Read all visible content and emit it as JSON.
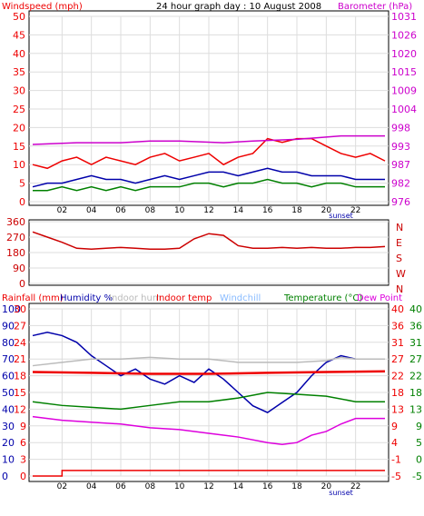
{
  "top_title": "24 hour graph day : 10 August 2008",
  "colors": {
    "red": "#ee0000",
    "green": "#008000",
    "blue": "#0000aa",
    "magenta": "#cc00cc",
    "grey": "#bbbbbb",
    "lightblue": "#88bbff",
    "dewpoint": "#dd00dd",
    "axis": "#000000"
  },
  "chart_data": [
    {
      "type": "line",
      "left_label": "Windspeed (mph)",
      "right_label": "Barometer (hPa)",
      "left_ticks": [
        "0",
        "5",
        "10",
        "15",
        "20",
        "25",
        "30",
        "35",
        "40",
        "45",
        "50"
      ],
      "right_ticks": [
        "976",
        "982",
        "987",
        "993",
        "998",
        "1004",
        "1009",
        "1015",
        "1020",
        "1026",
        "1031"
      ],
      "x_ticks": [
        "02",
        "04",
        "06",
        "08",
        "10",
        "12",
        "14",
        "16",
        "18",
        "20",
        "22"
      ],
      "x_marker": "sunset",
      "ylim": [
        0,
        50
      ],
      "y2lim": [
        976,
        1031
      ],
      "grid": true,
      "series": [
        {
          "key": "gust",
          "color": "#ee0000",
          "points": [
            [
              0,
              10
            ],
            [
              1,
              9
            ],
            [
              2,
              11
            ],
            [
              3,
              12
            ],
            [
              4,
              10
            ],
            [
              5,
              12
            ],
            [
              6,
              11
            ],
            [
              7,
              10
            ],
            [
              8,
              12
            ],
            [
              9,
              13
            ],
            [
              10,
              11
            ],
            [
              11,
              12
            ],
            [
              12,
              13
            ],
            [
              13,
              10
            ],
            [
              14,
              12
            ],
            [
              15,
              13
            ],
            [
              16,
              17
            ],
            [
              17,
              16
            ],
            [
              18,
              17
            ],
            [
              19,
              17
            ],
            [
              20,
              15
            ],
            [
              21,
              13
            ],
            [
              22,
              12
            ],
            [
              23,
              13
            ],
            [
              24,
              11
            ]
          ]
        },
        {
          "key": "avg",
          "color": "#0000aa",
          "points": [
            [
              0,
              4
            ],
            [
              1,
              5
            ],
            [
              2,
              5
            ],
            [
              3,
              6
            ],
            [
              4,
              7
            ],
            [
              5,
              6
            ],
            [
              6,
              6
            ],
            [
              7,
              5
            ],
            [
              8,
              6
            ],
            [
              9,
              7
            ],
            [
              10,
              6
            ],
            [
              11,
              7
            ],
            [
              12,
              8
            ],
            [
              13,
              8
            ],
            [
              14,
              7
            ],
            [
              15,
              8
            ],
            [
              16,
              9
            ],
            [
              17,
              8
            ],
            [
              18,
              8
            ],
            [
              19,
              7
            ],
            [
              20,
              7
            ],
            [
              21,
              7
            ],
            [
              22,
              6
            ],
            [
              23,
              6
            ],
            [
              24,
              6
            ]
          ]
        },
        {
          "key": "min",
          "color": "#008000",
          "points": [
            [
              0,
              3
            ],
            [
              1,
              3
            ],
            [
              2,
              4
            ],
            [
              3,
              3
            ],
            [
              4,
              4
            ],
            [
              5,
              3
            ],
            [
              6,
              4
            ],
            [
              7,
              3
            ],
            [
              8,
              4
            ],
            [
              9,
              4
            ],
            [
              10,
              4
            ],
            [
              11,
              5
            ],
            [
              12,
              5
            ],
            [
              13,
              4
            ],
            [
              14,
              5
            ],
            [
              15,
              5
            ],
            [
              16,
              6
            ],
            [
              17,
              5
            ],
            [
              18,
              5
            ],
            [
              19,
              4
            ],
            [
              20,
              5
            ],
            [
              21,
              5
            ],
            [
              22,
              4
            ],
            [
              23,
              4
            ],
            [
              24,
              4
            ]
          ]
        },
        {
          "key": "baro",
          "color": "#cc00cc",
          "axis": "right",
          "points": [
            [
              0,
              993
            ],
            [
              3,
              993.5
            ],
            [
              6,
              993.5
            ],
            [
              8,
              994
            ],
            [
              10,
              994
            ],
            [
              13,
              993.5
            ],
            [
              15,
              994
            ],
            [
              18,
              994.5
            ],
            [
              21,
              995.5
            ],
            [
              24,
              995.5
            ]
          ]
        }
      ]
    },
    {
      "type": "line",
      "left_ticks": [
        "0",
        "90",
        "180",
        "270",
        "360"
      ],
      "right_ticks": [
        "N",
        "E",
        "S",
        "W",
        "N"
      ],
      "ylim": [
        0,
        360
      ],
      "series": [
        {
          "key": "dir",
          "color": "#cc0000",
          "points": [
            [
              0,
              300
            ],
            [
              1,
              270
            ],
            [
              2,
              240
            ],
            [
              3,
              205
            ],
            [
              4,
              200
            ],
            [
              5,
              205
            ],
            [
              6,
              210
            ],
            [
              7,
              205
            ],
            [
              8,
              200
            ],
            [
              9,
              200
            ],
            [
              10,
              205
            ],
            [
              11,
              260
            ],
            [
              12,
              290
            ],
            [
              13,
              280
            ],
            [
              14,
              220
            ],
            [
              15,
              205
            ],
            [
              16,
              205
            ],
            [
              17,
              210
            ],
            [
              18,
              205
            ],
            [
              19,
              210
            ],
            [
              20,
              205
            ],
            [
              21,
              205
            ],
            [
              22,
              210
            ],
            [
              23,
              210
            ],
            [
              24,
              215
            ]
          ]
        }
      ]
    },
    {
      "type": "line",
      "legend": [
        "Rainfall (mm)",
        "Humidity %",
        "Indoor hum",
        "Indoor temp",
        "Windchill",
        "Temperature (°C)",
        "Dew Point"
      ],
      "left_rain_ticks": [
        "0",
        "3",
        "6",
        "9",
        "12",
        "15",
        "18",
        "21",
        "24",
        "27",
        "30"
      ],
      "left_hum_ticks": [
        "0",
        "10",
        "20",
        "30",
        "40",
        "50",
        "60",
        "70",
        "80",
        "90",
        "100"
      ],
      "right_ticks_inner": [
        "-5",
        "-1",
        "4",
        "9",
        "13",
        "18",
        "22",
        "27",
        "31",
        "36",
        "40"
      ],
      "right_ticks_outer": [
        "-5",
        "0",
        "5",
        "9",
        "13",
        "18",
        "22",
        "27",
        "31",
        "36",
        "40"
      ],
      "x_ticks": [
        "02",
        "04",
        "06",
        "08",
        "10",
        "12",
        "14",
        "16",
        "18",
        "20",
        "22"
      ],
      "x_marker": "sunset",
      "ylim_hum": [
        0,
        100
      ],
      "ylim_temp": [
        -5,
        40
      ],
      "series": [
        {
          "key": "humidity",
          "color": "#0000aa",
          "points": [
            [
              0,
              84
            ],
            [
              1,
              86
            ],
            [
              2,
              84
            ],
            [
              3,
              80
            ],
            [
              4,
              72
            ],
            [
              5,
              66
            ],
            [
              6,
              60
            ],
            [
              7,
              64
            ],
            [
              8,
              58
            ],
            [
              9,
              55
            ],
            [
              10,
              60
            ],
            [
              11,
              56
            ],
            [
              12,
              64
            ],
            [
              13,
              58
            ],
            [
              14,
              50
            ],
            [
              15,
              42
            ],
            [
              16,
              38
            ],
            [
              17,
              44
            ],
            [
              18,
              50
            ],
            [
              19,
              60
            ],
            [
              20,
              68
            ],
            [
              21,
              72
            ],
            [
              22,
              70
            ],
            [
              23,
              70
            ],
            [
              24,
              70
            ]
          ]
        },
        {
          "key": "indoor_hum",
          "color": "#bbbbbb",
          "points": [
            [
              0,
              66
            ],
            [
              2,
              68
            ],
            [
              4,
              70
            ],
            [
              6,
              70
            ],
            [
              8,
              71
            ],
            [
              10,
              70
            ],
            [
              12,
              70
            ],
            [
              14,
              68
            ],
            [
              16,
              68
            ],
            [
              18,
              68
            ],
            [
              20,
              69
            ],
            [
              21,
              71
            ],
            [
              22,
              70
            ],
            [
              24,
              70
            ]
          ]
        },
        {
          "key": "indoor_temp",
          "color": "#ee0000",
          "axis": "temp",
          "points": [
            [
              0,
              23
            ],
            [
              4,
              22.8
            ],
            [
              8,
              22.5
            ],
            [
              12,
              22.5
            ],
            [
              16,
              22.8
            ],
            [
              20,
              23
            ],
            [
              24,
              23.2
            ]
          ]
        },
        {
          "key": "temperature",
          "color": "#008000",
          "axis": "temp",
          "points": [
            [
              0,
              15
            ],
            [
              2,
              14
            ],
            [
              4,
              13.5
            ],
            [
              6,
              13
            ],
            [
              8,
              14
            ],
            [
              10,
              15
            ],
            [
              12,
              15
            ],
            [
              14,
              16
            ],
            [
              16,
              17.5
            ],
            [
              18,
              17
            ],
            [
              20,
              16.5
            ],
            [
              22,
              15
            ],
            [
              24,
              15
            ]
          ]
        },
        {
          "key": "dew_point",
          "color": "#dd00dd",
          "axis": "temp",
          "points": [
            [
              0,
              11
            ],
            [
              2,
              10
            ],
            [
              4,
              9.5
            ],
            [
              6,
              9
            ],
            [
              8,
              8
            ],
            [
              10,
              7.5
            ],
            [
              12,
              6.5
            ],
            [
              14,
              5.5
            ],
            [
              16,
              4
            ],
            [
              17,
              3.5
            ],
            [
              18,
              4
            ],
            [
              19,
              6
            ],
            [
              20,
              7
            ],
            [
              21,
              9
            ],
            [
              22,
              10.5
            ],
            [
              24,
              10.5
            ]
          ]
        },
        {
          "key": "rain",
          "color": "#ee0000",
          "points": [
            [
              0,
              0
            ],
            [
              2,
              0
            ],
            [
              2,
              1
            ],
            [
              24,
              1
            ]
          ]
        }
      ]
    }
  ]
}
